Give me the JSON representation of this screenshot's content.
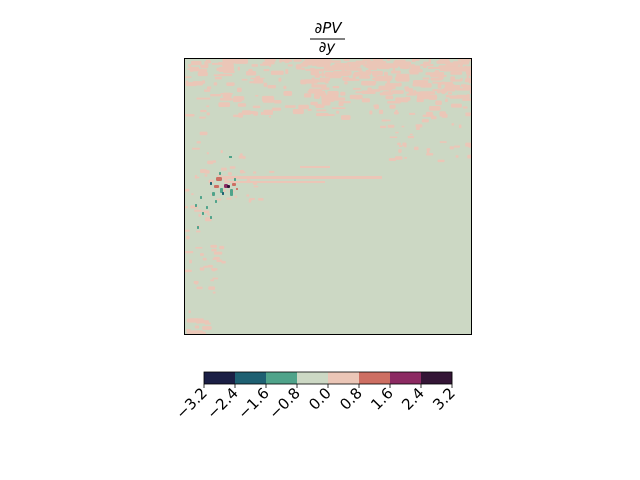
{
  "chart_data": {
    "type": "heatmap",
    "title": {
      "numerator": "∂PV",
      "denominator": "∂y"
    },
    "xlabel": "",
    "ylabel": "",
    "grid": false,
    "axis_ticks_shown": false,
    "colorbar": {
      "orientation": "horizontal",
      "placement": "bottom",
      "levels": [
        -3.2,
        -2.4,
        -1.6,
        -0.8,
        0.0,
        0.8,
        1.6,
        2.4,
        3.2
      ],
      "tick_labels": [
        "−3.2",
        "−2.4",
        "−1.6",
        "−0.8",
        "0.0",
        "0.8",
        "1.6",
        "2.4",
        "3.2"
      ],
      "band_colors": [
        "#1b1f45",
        "#1e6072",
        "#4fa38a",
        "#ccd8c4",
        "#ebc6b7",
        "#cd6e62",
        "#8c2a62",
        "#341536"
      ]
    },
    "field": {
      "background_value_range": [
        -0.8,
        0.0
      ],
      "background_color": "#ccd8c4",
      "features": [
        {
          "kind": "positive_patches",
          "range": [
            0.0,
            0.8
          ],
          "region": "upper band across top of domain",
          "color": "#ebc6b7"
        },
        {
          "kind": "positive_streak",
          "range": [
            0.0,
            0.8
          ],
          "region": "thin zonal streak at mid-upper latitude",
          "color": "#ebc6b7"
        },
        {
          "kind": "dipole_cluster",
          "region": "left-center, near western edge",
          "values": [
            -1.6,
            0.8,
            1.6,
            2.4,
            3.2
          ]
        },
        {
          "kind": "negative_specks",
          "range": [
            -2.4,
            -0.8
          ],
          "region": "scattered below the cluster",
          "color": "#4fa38a"
        }
      ]
    }
  }
}
